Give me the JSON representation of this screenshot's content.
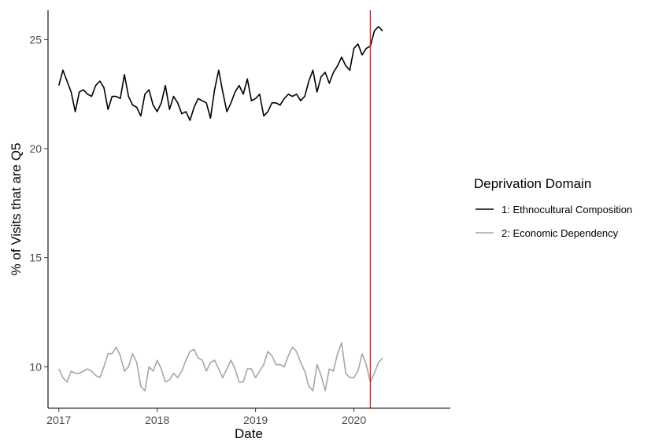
{
  "chart_data": {
    "type": "line",
    "xlabel": "Date",
    "ylabel": "% of Visits that are Q5",
    "x_range": [
      2016.89,
      2020.98
    ],
    "y_range": [
      8.1,
      26.35
    ],
    "x_ticks": [
      2017,
      2018,
      2019,
      2020
    ],
    "y_ticks": [
      10,
      15,
      20,
      25
    ],
    "grid": false,
    "legend": {
      "title": "Deprivation Domain",
      "placement": "right"
    },
    "vertical_line": {
      "x": 2020.1667,
      "color": "#e41a1c"
    },
    "series": [
      {
        "name": "1: Ethnocultural Composition",
        "color": "#000000",
        "x_start": 2017.0,
        "x_step": 0.041667,
        "values": [
          22.9,
          23.6,
          23.1,
          22.6,
          21.7,
          22.6,
          22.7,
          22.5,
          22.4,
          22.9,
          23.1,
          22.8,
          21.8,
          22.4,
          22.4,
          22.3,
          23.4,
          22.4,
          22.0,
          21.9,
          21.5,
          22.5,
          22.7,
          22.0,
          21.7,
          22.1,
          22.9,
          21.8,
          22.4,
          22.1,
          21.6,
          21.7,
          21.3,
          21.9,
          22.3,
          22.2,
          22.1,
          21.4,
          22.7,
          23.6,
          22.6,
          21.7,
          22.1,
          22.6,
          22.9,
          22.5,
          23.2,
          22.2,
          22.3,
          22.5,
          21.5,
          21.7,
          22.1,
          22.1,
          22.0,
          22.3,
          22.5,
          22.4,
          22.5,
          22.2,
          22.4,
          23.1,
          23.6,
          22.6,
          23.3,
          23.5,
          23.0,
          23.5,
          23.8,
          24.2,
          23.8,
          23.6,
          24.6,
          24.8,
          24.3,
          24.6,
          24.7,
          25.4,
          25.6,
          25.4
        ]
      },
      {
        "name": "2: Economic Dependency",
        "color": "#a6a6a6",
        "x_start": 2017.0,
        "x_step": 0.041667,
        "values": [
          9.9,
          9.5,
          9.3,
          9.8,
          9.7,
          9.7,
          9.8,
          9.9,
          9.8,
          9.6,
          9.5,
          10.0,
          10.6,
          10.6,
          10.9,
          10.5,
          9.8,
          10.0,
          10.6,
          10.2,
          9.1,
          8.9,
          10.0,
          9.8,
          10.3,
          9.9,
          9.3,
          9.4,
          9.7,
          9.5,
          9.8,
          10.3,
          10.7,
          10.8,
          10.4,
          10.3,
          9.8,
          10.2,
          10.3,
          9.9,
          9.5,
          9.9,
          10.3,
          9.9,
          9.3,
          9.3,
          9.9,
          9.9,
          9.5,
          9.8,
          10.1,
          10.7,
          10.5,
          10.1,
          10.1,
          10.0,
          10.5,
          10.9,
          10.7,
          10.2,
          9.8,
          9.1,
          8.9,
          10.1,
          9.6,
          8.9,
          9.9,
          9.8,
          10.6,
          11.1,
          9.7,
          9.5,
          9.5,
          9.8,
          10.6,
          10.1,
          9.3,
          9.7,
          10.2,
          10.4
        ]
      }
    ]
  }
}
